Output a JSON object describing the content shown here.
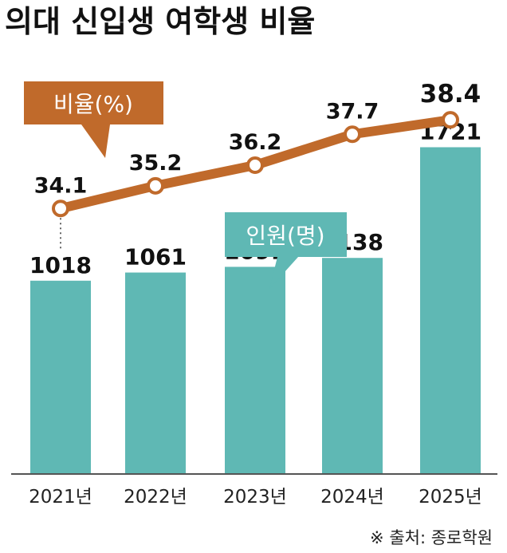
{
  "title": "의대 신입생 여학생 비율",
  "source": "※ 출처: 종로학원",
  "chart_data": {
    "type": "bar",
    "categories": [
      "2021년",
      "2022년",
      "2023년",
      "2024년",
      "2025년"
    ],
    "series": [
      {
        "name": "인원(명)",
        "type": "bar",
        "color": "#5fb8b4",
        "values": [
          1018,
          1061,
          1091,
          1138,
          1721
        ]
      },
      {
        "name": "비율(%)",
        "type": "line",
        "color": "#c06a2b",
        "values": [
          34.1,
          35.2,
          36.2,
          37.7,
          38.4
        ]
      }
    ],
    "value_labels": {
      "bars": [
        "1018",
        "1061",
        "1091",
        "1138",
        "1721"
      ],
      "line": [
        "34.1",
        "35.2",
        "36.2",
        "37.7",
        "38.4"
      ]
    },
    "legend_labels": {
      "line": "비율(%)",
      "bars": "인원(명)"
    },
    "grid": false,
    "bar_ylim": [
      0,
      1950
    ],
    "line_ylim": [
      32.6,
      38.6
    ]
  }
}
